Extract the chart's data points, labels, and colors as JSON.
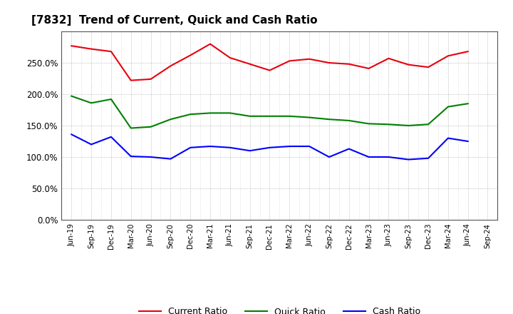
{
  "title": "[7832]  Trend of Current, Quick and Cash Ratio",
  "x_labels": [
    "Jun-19",
    "Sep-19",
    "Dec-19",
    "Mar-20",
    "Jun-20",
    "Sep-20",
    "Dec-20",
    "Mar-21",
    "Jun-21",
    "Sep-21",
    "Dec-21",
    "Mar-22",
    "Jun-22",
    "Sep-22",
    "Dec-22",
    "Mar-23",
    "Jun-23",
    "Sep-23",
    "Dec-23",
    "Mar-24",
    "Jun-24",
    "Sep-24"
  ],
  "current_ratio": [
    277,
    272,
    268,
    222,
    224,
    245,
    262,
    280,
    258,
    248,
    238,
    253,
    256,
    250,
    248,
    241,
    257,
    247,
    243,
    261,
    268,
    null
  ],
  "quick_ratio": [
    197,
    186,
    192,
    146,
    148,
    160,
    168,
    170,
    170,
    165,
    165,
    165,
    163,
    160,
    158,
    153,
    152,
    150,
    152,
    180,
    185,
    null
  ],
  "cash_ratio": [
    136,
    120,
    132,
    101,
    100,
    97,
    115,
    117,
    115,
    110,
    115,
    117,
    117,
    100,
    113,
    100,
    100,
    96,
    98,
    130,
    125,
    null
  ],
  "current_color": "#e8000d",
  "quick_color": "#008000",
  "cash_color": "#0000ff",
  "ylim": [
    0,
    300
  ],
  "yticks": [
    0,
    50,
    100,
    150,
    200,
    250
  ],
  "background_color": "#ffffff",
  "grid_color": "#888888"
}
